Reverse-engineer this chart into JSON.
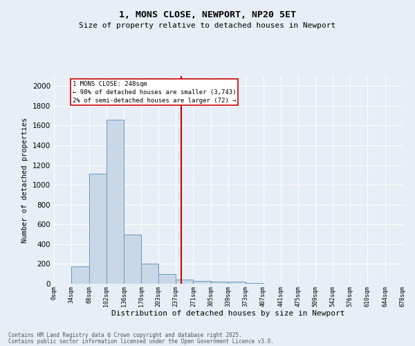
{
  "title": "1, MONS CLOSE, NEWPORT, NP20 5ET",
  "subtitle": "Size of property relative to detached houses in Newport",
  "xlabel": "Distribution of detached houses by size in Newport",
  "ylabel": "Number of detached properties",
  "bar_edges": [
    0,
    34,
    68,
    102,
    136,
    170,
    203,
    237,
    271,
    305,
    339,
    373,
    407,
    441,
    475,
    509,
    542,
    576,
    610,
    644,
    678
  ],
  "bar_heights": [
    0,
    175,
    1115,
    1660,
    500,
    205,
    100,
    40,
    30,
    20,
    20,
    10,
    0,
    0,
    0,
    0,
    0,
    0,
    0,
    0
  ],
  "bar_color": "#c8d8e8",
  "bar_edgecolor": "#6699bb",
  "vline_x": 248,
  "vline_color": "#cc0000",
  "annotation_text": "1 MONS CLOSE: 248sqm\n← 98% of detached houses are smaller (3,743)\n2% of semi-detached houses are larger (72) →",
  "annotation_box_color": "#cc0000",
  "annotation_text_color": "#000000",
  "ylim": [
    0,
    2100
  ],
  "yticks": [
    0,
    200,
    400,
    600,
    800,
    1000,
    1200,
    1400,
    1600,
    1800,
    2000
  ],
  "tick_labels": [
    "0sqm",
    "34sqm",
    "68sqm",
    "102sqm",
    "136sqm",
    "170sqm",
    "203sqm",
    "237sqm",
    "271sqm",
    "305sqm",
    "339sqm",
    "373sqm",
    "407sqm",
    "441sqm",
    "475sqm",
    "509sqm",
    "542sqm",
    "576sqm",
    "610sqm",
    "644sqm",
    "678sqm"
  ],
  "bg_color": "#e8eef5",
  "grid_color": "#ffffff",
  "footer_line1": "Contains HM Land Registry data © Crown copyright and database right 2025.",
  "footer_line2": "Contains public sector information licensed under the Open Government Licence v3.0."
}
